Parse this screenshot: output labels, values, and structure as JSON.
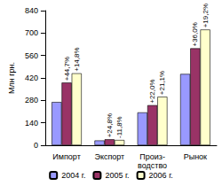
{
  "chart_data": {
    "type": "bar",
    "ylabel": "Млн грн.",
    "categories": [
      "Импорт",
      "Экспорт",
      "Произ-\nводство",
      "Рынок"
    ],
    "series": [
      {
        "name": "2004 г.",
        "color": "#9999ff",
        "values": [
          270,
          30,
          205,
          445
        ]
      },
      {
        "name": "2005 г.",
        "color": "#993366",
        "values": [
          391,
          37,
          250,
          605
        ],
        "annotations": [
          "+44,7%",
          "+24,8%",
          "+22,0%",
          "+36,0%"
        ]
      },
      {
        "name": "2006 г.",
        "color": "#ffffcc",
        "values": [
          449,
          33,
          303,
          722
        ],
        "annotations": [
          "+14,8%",
          "-11,8%",
          "+21,1%",
          "+19,2%"
        ]
      }
    ],
    "ylim": [
      0,
      840
    ],
    "yticks": [
      0,
      140,
      280,
      420,
      560,
      700,
      840
    ],
    "grid": false,
    "legend": "bottom",
    "data_labels": false
  }
}
